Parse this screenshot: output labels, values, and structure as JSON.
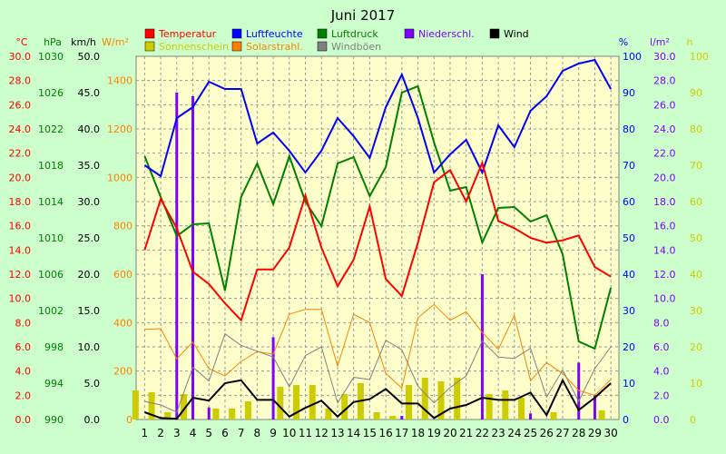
{
  "chart_data": {
    "type": "line",
    "title": "Juni 2017",
    "x": [
      1,
      2,
      3,
      4,
      5,
      6,
      7,
      8,
      9,
      10,
      11,
      12,
      13,
      14,
      15,
      16,
      17,
      18,
      19,
      20,
      21,
      22,
      23,
      24,
      25,
      26,
      27,
      28,
      29,
      30
    ],
    "axes": {
      "temp": {
        "unit": "°C",
        "color": "#ff0000",
        "ticks": [
          "30.0",
          "28.0",
          "26.0",
          "24.0",
          "22.0",
          "20.0",
          "18.0",
          "16.0",
          "14.0",
          "12.0",
          "10.0",
          "8.0",
          "6.0",
          "4.0",
          "2.0",
          "0.0"
        ]
      },
      "press": {
        "unit": "hPa",
        "color": "#008000",
        "ticks": [
          "1030",
          "1026",
          "1022",
          "1018",
          "1014",
          "1010",
          "1006",
          "1002",
          "998",
          "994",
          "990"
        ]
      },
      "wind": {
        "unit": "km/h",
        "color": "#000000",
        "ticks": [
          "50.0",
          "45.0",
          "40.0",
          "35.0",
          "30.0",
          "25.0",
          "20.0",
          "15.0",
          "10.0",
          "5.0",
          "0.0"
        ]
      },
      "rad": {
        "unit": "W/m²",
        "color": "#ff8000",
        "ticks": [
          "1400",
          "1200",
          "1000",
          "800",
          "600",
          "400",
          "200",
          "0"
        ]
      },
      "hum": {
        "unit": "%",
        "color": "#0000ff",
        "ticks": [
          "100",
          "90",
          "80",
          "70",
          "60",
          "50",
          "40",
          "30",
          "20",
          "10",
          "0"
        ]
      },
      "rain": {
        "unit": "l/m²",
        "color": "#8000ff",
        "ticks": [
          "30.0",
          "28.0",
          "26.0",
          "24.0",
          "22.0",
          "20.0",
          "18.0",
          "16.0",
          "14.0",
          "12.0",
          "10.0",
          "8.0",
          "6.0",
          "4.0",
          "2.0",
          "0.0"
        ]
      },
      "sun": {
        "unit": "h",
        "color": "#cccc00",
        "ticks": [
          "100",
          "90",
          "80",
          "70",
          "60",
          "50",
          "40",
          "30",
          "20",
          "10",
          "0"
        ]
      }
    },
    "legend": [
      {
        "label": "Temperatur",
        "color": "#ff0000"
      },
      {
        "label": "Luftfeuchte",
        "color": "#0000ff"
      },
      {
        "label": "Luftdruck",
        "color": "#008000"
      },
      {
        "label": "Niederschl.",
        "color": "#8000ff"
      },
      {
        "label": "Wind",
        "color": "#000000"
      },
      {
        "label": "Sonnenschein",
        "color": "#cccc00"
      },
      {
        "label": "Solarstrahl.",
        "color": "#ff8000"
      },
      {
        "label": "Windböen",
        "color": "#808080"
      }
    ],
    "series": [
      {
        "name": "Temperatur",
        "axis": "temp",
        "color": "#ff0000",
        "values": [
          14.0,
          18.2,
          15.8,
          12.2,
          11.2,
          9.6,
          8.2,
          12.4,
          12.4,
          14.2,
          18.5,
          14.2,
          11.0,
          13.2,
          17.6,
          11.6,
          10.2,
          14.6,
          19.6,
          20.6,
          18.0,
          21.2,
          16.4,
          15.8,
          15.0,
          14.6,
          14.8,
          15.2,
          12.6,
          11.8
        ]
      },
      {
        "name": "Luftfeuchte",
        "axis": "hum",
        "color": "#0000ff",
        "values": [
          70,
          67,
          83,
          86,
          93,
          91,
          91,
          76,
          79,
          74,
          68,
          74,
          83,
          78,
          72,
          86,
          95,
          83,
          68,
          73,
          77,
          68,
          81,
          75,
          85,
          89,
          96,
          98,
          99,
          91
        ]
      },
      {
        "name": "Luftdruck",
        "axis": "press",
        "color": "#008000",
        "values": [
          1019.0,
          1014.5,
          1010.2,
          1011.5,
          1011.6,
          1004.2,
          1014.5,
          1018.2,
          1013.7,
          1019.0,
          1014.0,
          1011.3,
          1018.2,
          1018.9,
          1014.6,
          1017.8,
          1026.0,
          1026.7,
          1020.5,
          1015.2,
          1015.6,
          1009.5,
          1013.3,
          1013.4,
          1011.8,
          1012.5,
          1008.2,
          998.6,
          997.8,
          1004.5
        ]
      },
      {
        "name": "Niederschl.",
        "axis": "rain",
        "color": "#8000ff",
        "kind": "bar",
        "values": [
          0,
          0,
          27.0,
          26.7,
          1.0,
          0,
          0,
          0,
          6.8,
          0,
          0,
          0,
          0,
          0,
          0,
          0,
          0.3,
          0,
          0,
          0,
          0,
          12.0,
          0,
          0,
          0.5,
          0,
          0,
          4.7,
          2.0,
          0
        ]
      },
      {
        "name": "Wind",
        "axis": "wind",
        "color": "#000000",
        "values": [
          1.0,
          0.2,
          0.1,
          3.0,
          2.6,
          5.0,
          5.4,
          2.7,
          2.7,
          0.4,
          1.6,
          2.6,
          0.4,
          2.4,
          2.8,
          4.2,
          2.2,
          2.2,
          0.2,
          1.5,
          2.0,
          3.0,
          2.7,
          2.7,
          3.7,
          0.6,
          5.4,
          1.3,
          3.0,
          5.0
        ]
      },
      {
        "name": "Windböen",
        "axis": "wind",
        "color": "#808080",
        "values": [
          2.5,
          2.0,
          1.0,
          7.2,
          5.3,
          11.8,
          10.2,
          9.4,
          8.6,
          4.5,
          8.8,
          10.0,
          2.3,
          5.8,
          5.5,
          10.9,
          9.6,
          4.6,
          2.3,
          4.4,
          6.0,
          10.8,
          8.6,
          8.4,
          9.8,
          3.1,
          6.8,
          2.5,
          7.0,
          10.0
        ]
      },
      {
        "name": "Sonnenschein",
        "axis": "sun",
        "color": "#cccc00",
        "kind": "bar",
        "values": [
          8.0,
          7.5,
          2.0,
          7.0,
          0,
          3.0,
          3.0,
          5.0,
          0,
          9.0,
          9.5,
          9.5,
          3.0,
          7.0,
          10.0,
          2.0,
          1.0,
          9.5,
          11.5,
          10.5,
          11.5,
          0,
          7.0,
          8.0,
          6.0,
          0,
          2.0,
          0,
          0,
          2.5
        ]
      },
      {
        "name": "Solarstrahl.",
        "axis": "rad",
        "color": "#ff8000",
        "values": [
          372,
          375,
          250,
          320,
          210,
          180,
          240,
          280,
          270,
          435,
          455,
          455,
          220,
          435,
          400,
          190,
          130,
          420,
          475,
          410,
          445,
          360,
          290,
          430,
          160,
          235,
          190,
          120,
          100,
          165
        ]
      }
    ]
  }
}
